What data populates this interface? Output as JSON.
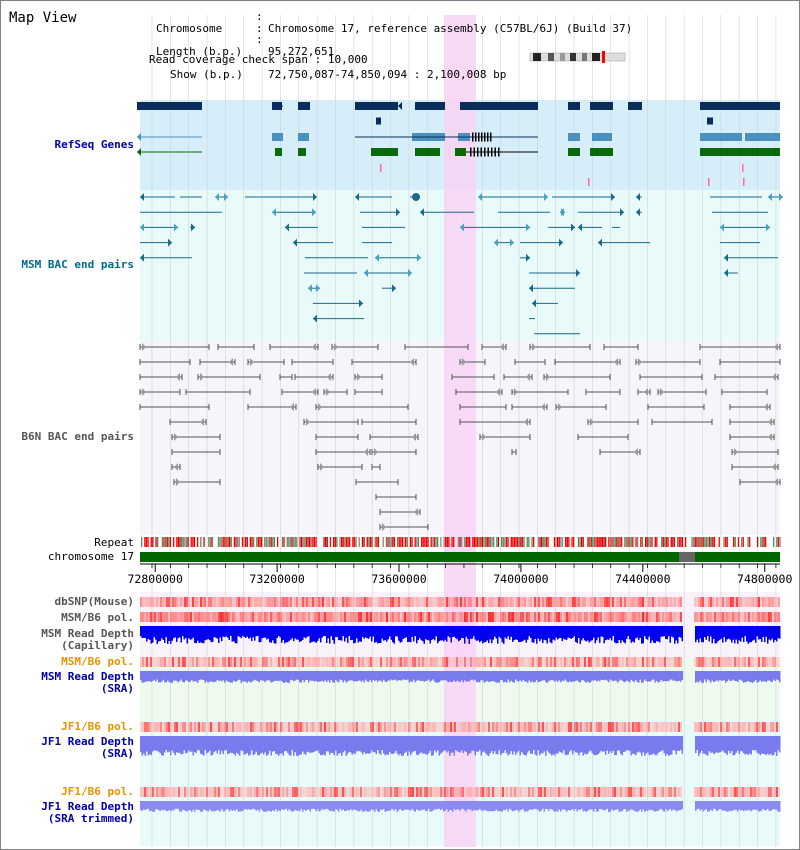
{
  "view_title": "Map View",
  "info": {
    "chromosome_key": "Chromosome",
    "chromosome_val": "Chromosome 17, reference assembly (C57BL/6J) (Build 37)",
    "length_key": "Length (b.p.)",
    "length_val": "95,272,651",
    "show_key": "Show (b.p.)",
    "show_val": "72,750,087-74,850,094 : 2,100,008 bp",
    "span_key": "Read coverage check span",
    "span_val": "10,000"
  },
  "tracks": {
    "refseq": "RefSeq Genes",
    "msm_bac": "MSM BAC end pairs",
    "b6n_bac": "B6N BAC end pairs",
    "repeat": "Repeat",
    "chromosome": "chromosome 17",
    "dbsnp": "dbSNP(Mouse)",
    "msm_b6_pol_1": "MSM/B6 pol.",
    "msm_read_depth_cap_1": "MSM Read Depth",
    "msm_read_depth_cap_2": "(Capillary)",
    "msm_b6_pol_2": "MSM/B6 pol.",
    "msm_read_depth_sra_1": "MSM Read Depth",
    "msm_read_depth_sra_2": "(SRA)",
    "jf1_b6_pol_1": "JF1/B6 pol.",
    "jf1_read_depth_sra_1": "JF1 Read Depth",
    "jf1_read_depth_sra_2": "(SRA)",
    "jf1_b6_pol_2": "JF1/B6 pol.",
    "jf1_read_depth_trim_1": "JF1 Read Depth",
    "jf1_read_depth_trim_2": "(SRA trimmed)"
  },
  "axis": {
    "start": 72750087,
    "end": 74850094,
    "ticks": [
      "72800000",
      "73200000",
      "73600000",
      "74000000",
      "74400000",
      "74800000"
    ]
  },
  "colors": {
    "refseq_band": "#d6eefa",
    "msm_band": "#e8fafa",
    "b6n_band": "#f5f5fa",
    "highlight": "#f8d4f4",
    "refseq_dark": "#0a2d5c",
    "refseq_mid": "#4a91bf",
    "refseq_green": "#0a6a0a",
    "msm_line": "#1a6a88",
    "b6n_line": "#555555",
    "chromosome_bar": "#006600",
    "depth_cap": "#0000ee",
    "depth_sra": "#7a7aef",
    "label_blue": "#0000aa",
    "label_orange": "#e69400",
    "label_teal": "#006a8a"
  }
}
